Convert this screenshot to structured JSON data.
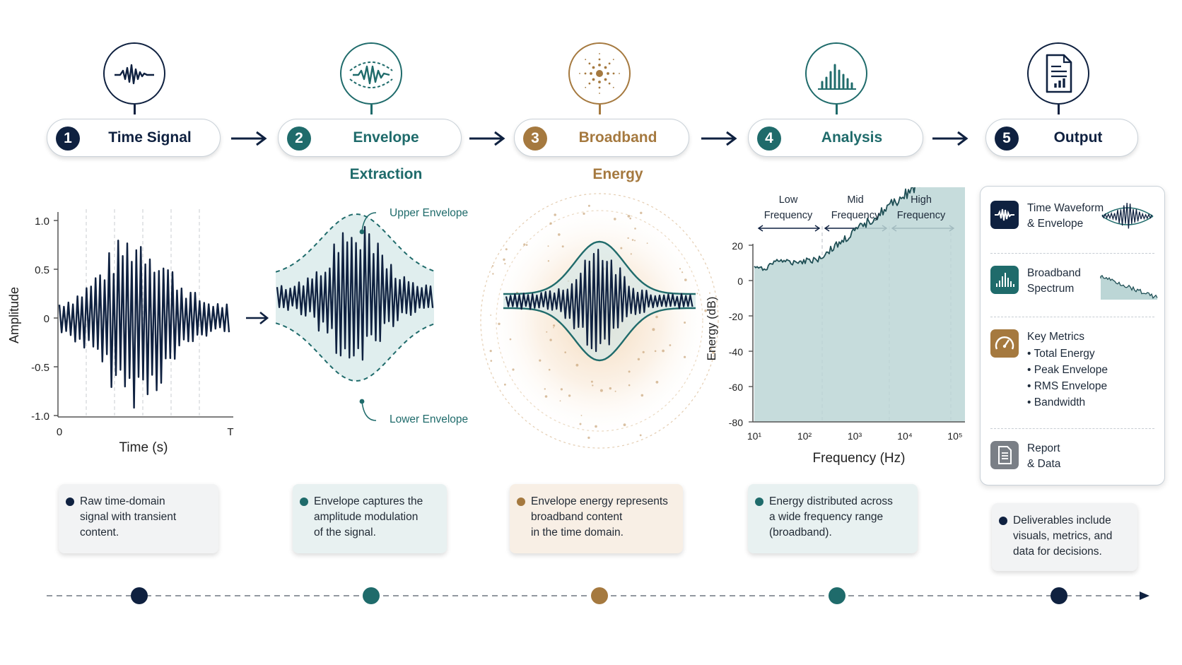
{
  "steps": [
    {
      "num": "1",
      "label": "Time Signal",
      "color": "#0f2140"
    },
    {
      "num": "2",
      "label": "Envelope Extraction",
      "color": "#1f6b6b"
    },
    {
      "num": "3",
      "label": "Broadband Energy",
      "color": "#a5793f"
    },
    {
      "num": "4",
      "label": "Analysis",
      "color": "#1f6b6b"
    },
    {
      "num": "5",
      "label": "Output",
      "color": "#0f2140"
    }
  ],
  "panel1": {
    "ylabel": "Amplitude",
    "xlabel": "Time (s)",
    "yticks": [
      "1.0",
      "0.5",
      "0",
      "-0.5",
      "-1.0"
    ],
    "x_start": "0",
    "x_end": "T"
  },
  "panel2": {
    "upper_label": "Upper Envelope",
    "lower_label": "Lower Envelope"
  },
  "panel4": {
    "band_low": "Low\nFrequency",
    "band_mid": "Mid\nFrequency",
    "band_high": "High\nFrequency",
    "ylabel": "Energy (dB)",
    "xlabel": "Frequency (Hz)",
    "yticks": [
      "20",
      "0",
      "-20",
      "-40",
      "-60",
      "-80"
    ],
    "xticks": [
      "10¹",
      "10²",
      "10³",
      "10⁴",
      "10⁵"
    ]
  },
  "outputs": [
    {
      "text": "Time Waveform\n& Envelope",
      "icon": "waveform-icon",
      "color": "#0f2140"
    },
    {
      "text": "Broadband\nSpectrum",
      "icon": "bar-chart-icon",
      "color": "#1f6b6b"
    },
    {
      "text": "Key Metrics",
      "icon": "gauge-icon",
      "color": "#a5793f",
      "bullets": [
        "Total Energy",
        "Peak Envelope",
        "RMS Envelope",
        "Bandwidth"
      ]
    },
    {
      "text": "Report\n& Data",
      "icon": "document-icon",
      "color": "#7a7f86"
    }
  ],
  "notes": [
    {
      "text": "Raw time-domain\nsignal with transient\ncontent.",
      "bg": "#f2f3f4",
      "dot": "#0f2140"
    },
    {
      "text": "Envelope captures the\namplitude modulation\nof the signal.",
      "bg": "#e8f1f1",
      "dot": "#1f6b6b"
    },
    {
      "text": "Envelope energy represents\nbroadband content\nin the time domain.",
      "bg": "#f8efe5",
      "dot": "#a5793f"
    },
    {
      "text": "Energy distributed across\na wide frequency range\n(broadband).",
      "bg": "#e8f1f1",
      "dot": "#1f6b6b"
    },
    {
      "text": "Deliverables include\nvisuals, metrics, and\ndata for decisions.",
      "bg": "#f2f3f4",
      "dot": "#0f2140"
    }
  ]
}
